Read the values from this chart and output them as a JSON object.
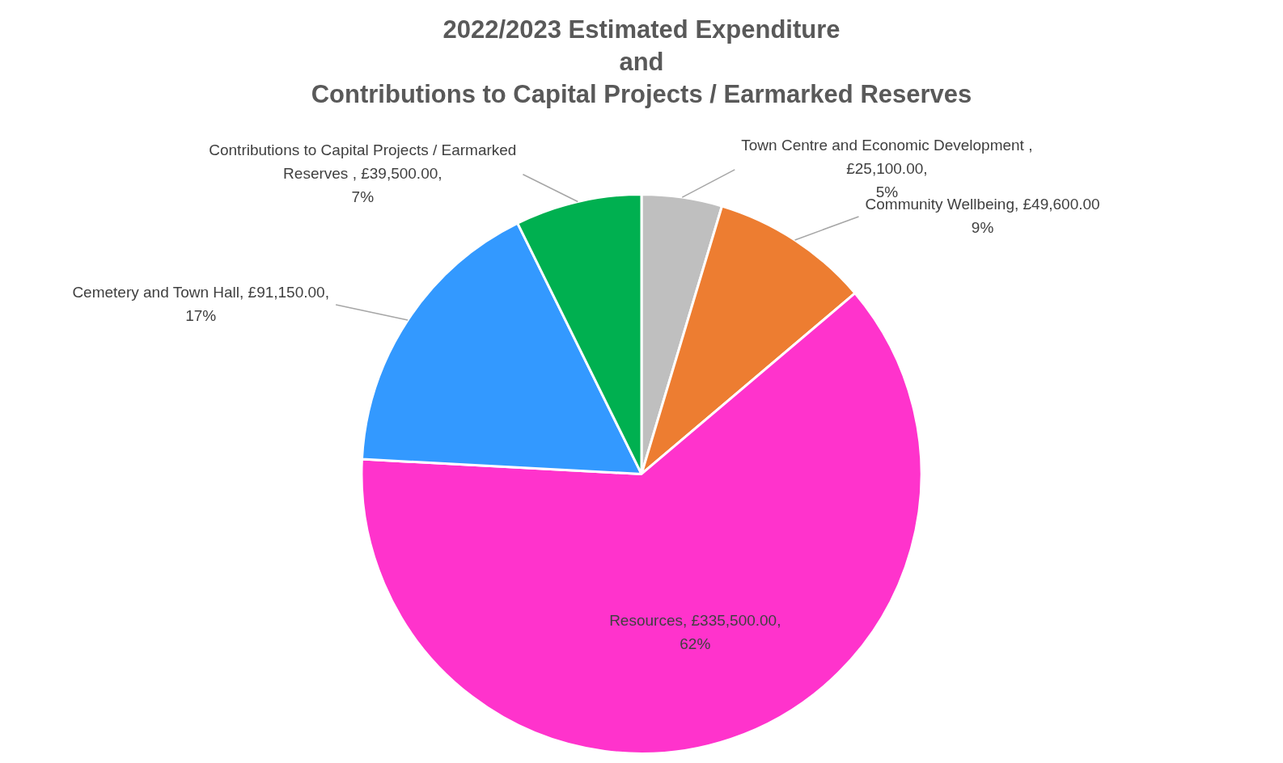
{
  "chart_data": {
    "type": "pie",
    "title": "2022/2023 Estimated Expenditure\nand\nContributions to Capital Projects / Earmarked Reserves",
    "categories": [
      "Town Centre and Economic Development",
      "Community Wellbeing",
      "Resources",
      "Cemetery and Town Hall",
      "Contributions to Capital Projects / Earmarked Reserves"
    ],
    "values": [
      25100,
      49600,
      335500,
      91150,
      39500
    ],
    "value_labels": [
      " , £25,100.00, 5%",
      ", £49,600.00 9%",
      ", £335,500.00, 62%",
      ", £91,150.00, 17%",
      " , £39,500.00, 7%"
    ],
    "colors": [
      "#bfbfbf",
      "#ed7d31",
      "#ff33cc",
      "#3399ff",
      "#00b050"
    ],
    "legend": false
  }
}
